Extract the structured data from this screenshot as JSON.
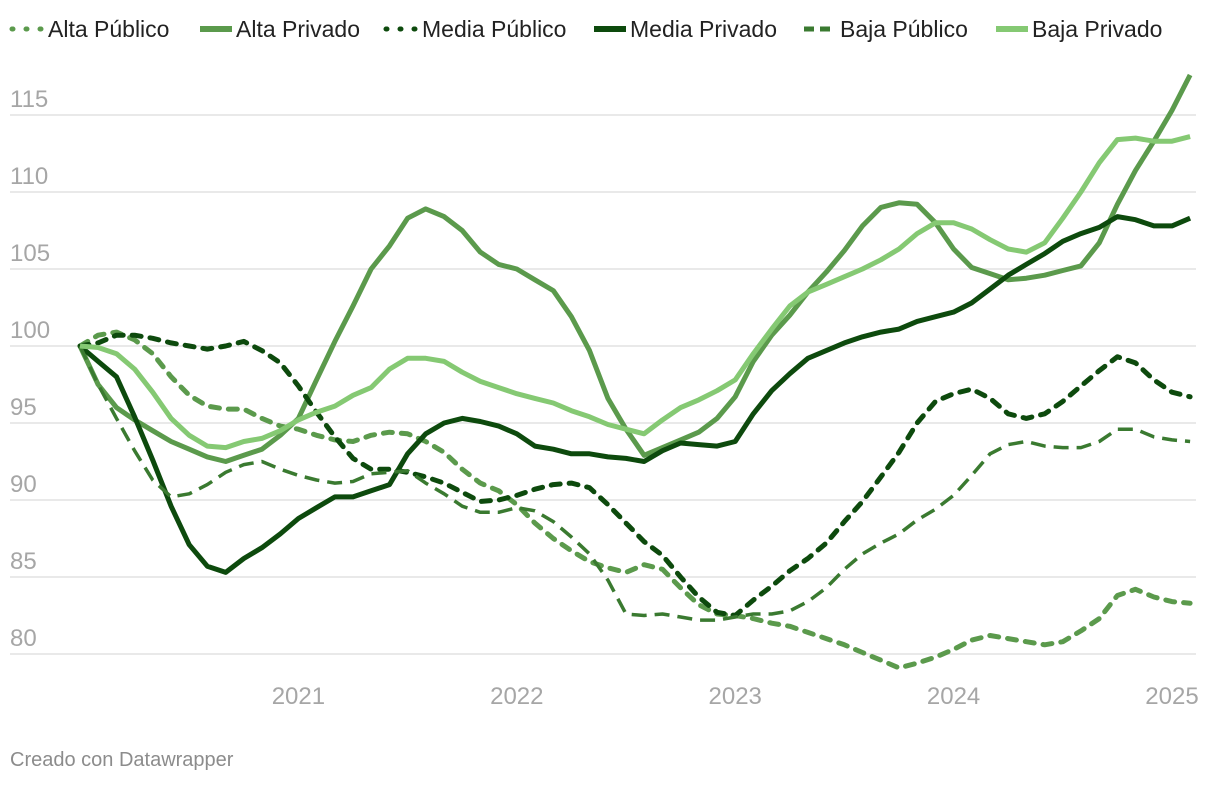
{
  "footer": {
    "credit": "Creado con Datawrapper"
  },
  "chart_data": {
    "type": "line",
    "title": "",
    "xlabel": "",
    "ylabel": "",
    "x_ticks": [
      "2021",
      "2022",
      "2023",
      "2024",
      "2025"
    ],
    "x_tick_values": [
      2021,
      2022,
      2023,
      2024,
      2025
    ],
    "y_ticks": [
      80,
      85,
      90,
      95,
      100,
      105,
      110,
      115
    ],
    "ylim": [
      78.5,
      118
    ],
    "xlim": [
      2020,
      2025.15
    ],
    "grid": true,
    "legend_position": "top",
    "x": [
      2020.0,
      2020.083,
      2020.167,
      2020.25,
      2020.333,
      2020.417,
      2020.5,
      2020.583,
      2020.667,
      2020.75,
      2020.833,
      2020.917,
      2021.0,
      2021.083,
      2021.167,
      2021.25,
      2021.333,
      2021.417,
      2021.5,
      2021.583,
      2021.667,
      2021.75,
      2021.833,
      2021.917,
      2022.0,
      2022.083,
      2022.167,
      2022.25,
      2022.333,
      2022.417,
      2022.5,
      2022.583,
      2022.667,
      2022.75,
      2022.833,
      2022.917,
      2023.0,
      2023.083,
      2023.167,
      2023.25,
      2023.333,
      2023.417,
      2023.5,
      2023.583,
      2023.667,
      2023.75,
      2023.833,
      2023.917,
      2024.0,
      2024.083,
      2024.167,
      2024.25,
      2024.333,
      2024.417,
      2024.5,
      2024.583,
      2024.667,
      2024.75,
      2024.833,
      2024.917,
      2025.0,
      2025.083
    ],
    "series": [
      {
        "name": "Alta Público",
        "color": "#5b9a4c",
        "dash": "dotted",
        "values": [
          100,
          100.7,
          100.9,
          100.4,
          99.5,
          98.0,
          96.8,
          96.1,
          95.9,
          95.9,
          95.3,
          94.8,
          94.6,
          94.2,
          93.9,
          93.8,
          94.2,
          94.4,
          94.3,
          93.8,
          93.1,
          92.0,
          91.1,
          90.6,
          89.7,
          88.5,
          87.5,
          86.7,
          86.0,
          85.6,
          85.3,
          85.8,
          85.5,
          84.3,
          83.2,
          82.6,
          82.5,
          82.3,
          82.0,
          81.8,
          81.4,
          81.0,
          80.6,
          80.1,
          79.6,
          79.1,
          79.4,
          79.8,
          80.3,
          80.9,
          81.2,
          81.0,
          80.8,
          80.6,
          80.8,
          81.5,
          82.3,
          83.8,
          84.2,
          83.7,
          83.4,
          83.3
        ]
      },
      {
        "name": "Alta Privado",
        "color": "#5b9a4c",
        "dash": "solid",
        "values": [
          100,
          97.5,
          96.0,
          95.2,
          94.5,
          93.8,
          93.3,
          92.8,
          92.5,
          92.9,
          93.3,
          94.2,
          95.3,
          97.8,
          100.3,
          102.6,
          105.0,
          106.5,
          108.3,
          108.9,
          108.4,
          107.5,
          106.1,
          105.3,
          105.0,
          104.3,
          103.6,
          101.9,
          99.7,
          96.6,
          94.6,
          92.9,
          93.4,
          93.9,
          94.4,
          95.3,
          96.7,
          99.0,
          100.7,
          102.0,
          103.5,
          104.8,
          106.2,
          107.8,
          109.0,
          109.3,
          109.2,
          108.0,
          106.3,
          105.1,
          104.7,
          104.3,
          104.4,
          104.6,
          104.9,
          105.2,
          106.7,
          109.2,
          111.4,
          113.3,
          115.3,
          117.6
        ]
      },
      {
        "name": "Media Público",
        "color": "#0d4a0d",
        "dash": "dotted",
        "values": [
          100,
          100.2,
          100.7,
          100.7,
          100.5,
          100.2,
          100.0,
          99.8,
          100.0,
          100.3,
          99.7,
          98.9,
          97.4,
          95.7,
          94.1,
          92.7,
          92.0,
          92.0,
          91.8,
          91.5,
          91.1,
          90.5,
          89.9,
          90.0,
          90.3,
          90.7,
          91.0,
          91.1,
          90.8,
          89.7,
          88.5,
          87.3,
          86.4,
          85.0,
          83.7,
          82.7,
          82.5,
          83.5,
          84.4,
          85.4,
          86.2,
          87.2,
          88.6,
          89.9,
          91.5,
          93.1,
          95.0,
          96.4,
          96.9,
          97.2,
          96.6,
          95.6,
          95.3,
          95.6,
          96.4,
          97.4,
          98.4,
          99.3,
          98.9,
          97.8,
          97.0,
          96.7
        ]
      },
      {
        "name": "Media Privado",
        "color": "#0d4a0d",
        "dash": "solid",
        "values": [
          100,
          99.0,
          98.0,
          95.4,
          92.6,
          89.6,
          87.1,
          85.7,
          85.3,
          86.2,
          86.9,
          87.8,
          88.8,
          89.5,
          90.2,
          90.2,
          90.6,
          91.0,
          93.0,
          94.3,
          95.0,
          95.3,
          95.1,
          94.8,
          94.3,
          93.5,
          93.3,
          93.0,
          93.0,
          92.8,
          92.7,
          92.5,
          93.2,
          93.7,
          93.6,
          93.5,
          93.8,
          95.6,
          97.1,
          98.2,
          99.2,
          99.7,
          100.2,
          100.6,
          100.9,
          101.1,
          101.6,
          101.9,
          102.2,
          102.8,
          103.7,
          104.6,
          105.3,
          106.0,
          106.8,
          107.3,
          107.7,
          108.4,
          108.2,
          107.8,
          107.8,
          108.3
        ]
      },
      {
        "name": "Baja Público",
        "color": "#3a7a30",
        "dash": "dashed",
        "values": [
          100,
          97.5,
          95.3,
          93.2,
          91.3,
          90.2,
          90.4,
          91.0,
          91.8,
          92.3,
          92.5,
          92.0,
          91.6,
          91.3,
          91.1,
          91.2,
          91.7,
          91.8,
          91.9,
          91.1,
          90.4,
          89.6,
          89.2,
          89.2,
          89.5,
          89.3,
          88.6,
          87.6,
          86.5,
          84.8,
          82.6,
          82.5,
          82.6,
          82.4,
          82.2,
          82.2,
          82.4,
          82.6,
          82.6,
          82.8,
          83.4,
          84.3,
          85.5,
          86.5,
          87.2,
          87.8,
          88.7,
          89.4,
          90.3,
          91.6,
          93.0,
          93.6,
          93.8,
          93.5,
          93.4,
          93.4,
          93.8,
          94.6,
          94.6,
          94.1,
          93.9,
          93.8
        ]
      },
      {
        "name": "Baja Privado",
        "color": "#85c973",
        "dash": "solid",
        "values": [
          100,
          99.9,
          99.5,
          98.5,
          97.0,
          95.3,
          94.2,
          93.5,
          93.4,
          93.8,
          94.0,
          94.5,
          95.2,
          95.7,
          96.1,
          96.8,
          97.3,
          98.5,
          99.2,
          99.2,
          99.0,
          98.3,
          97.7,
          97.3,
          96.9,
          96.6,
          96.3,
          95.8,
          95.4,
          94.9,
          94.6,
          94.3,
          95.2,
          96.0,
          96.5,
          97.1,
          97.8,
          99.5,
          101.1,
          102.6,
          103.5,
          104.0,
          104.5,
          105.0,
          105.6,
          106.3,
          107.3,
          108.0,
          108.0,
          107.6,
          106.9,
          106.3,
          106.1,
          106.7,
          108.3,
          110.0,
          111.9,
          113.4,
          113.5,
          113.3,
          113.3,
          113.6
        ]
      }
    ]
  }
}
